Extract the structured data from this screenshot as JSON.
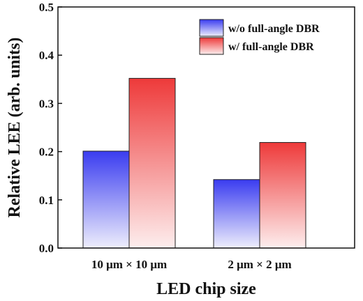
{
  "chart_data": {
    "type": "bar",
    "categories": [
      "10 μm × 10 μm",
      "2 μm × 2 μm"
    ],
    "series": [
      {
        "name": "w/o full-angle DBR",
        "values": [
          0.201,
          0.142
        ],
        "color": "#3a3cf0"
      },
      {
        "name": "w/ full-angle DBR",
        "values": [
          0.352,
          0.219
        ],
        "color": "#ee3a3a"
      }
    ],
    "xlabel": "LED chip size",
    "ylabel": "Relative LEE (arb. units)",
    "ylim": [
      0,
      0.5
    ],
    "yticks": [
      "0.0",
      "0.1",
      "0.2",
      "0.3",
      "0.4",
      "0.5"
    ],
    "legend_position": "top-right",
    "grid": false
  }
}
